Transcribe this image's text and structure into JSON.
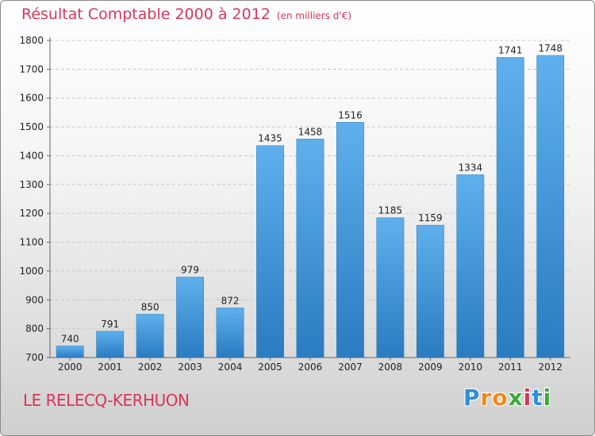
{
  "title": "Résultat Comptable 2000 à 2012",
  "unit_note": "(en milliers d'€)",
  "commune": "LE RELECQ-KERHUON",
  "logo": {
    "text": "Proxiti",
    "letters": [
      "P",
      "r",
      "o",
      "x",
      "i",
      "t",
      "i"
    ],
    "colors": [
      "#2f8fd8",
      "#f08a1c",
      "#f08a1c",
      "#3aaa35",
      "#d8365a",
      "#2f8fd8",
      "#3aaa35"
    ]
  },
  "chart_data": {
    "type": "bar",
    "categories": [
      "2000",
      "2001",
      "2002",
      "2003",
      "2004",
      "2005",
      "2006",
      "2007",
      "2008",
      "2009",
      "2010",
      "2011",
      "2012"
    ],
    "values": [
      740,
      791,
      850,
      979,
      872,
      1435,
      1458,
      1516,
      1185,
      1159,
      1334,
      1741,
      1748
    ],
    "ylim": [
      700,
      1800
    ],
    "yticks": [
      700,
      800,
      900,
      1000,
      1100,
      1200,
      1300,
      1400,
      1500,
      1600,
      1700,
      1800
    ],
    "grid": true,
    "bar_color": "#3d9ae0",
    "bar_color_dark": "#2a7bc0"
  }
}
